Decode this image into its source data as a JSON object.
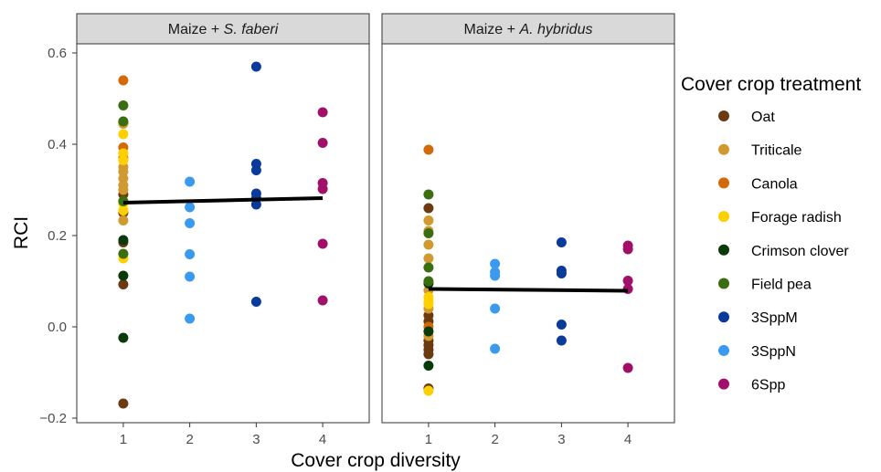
{
  "chart_data": {
    "type": "scatter",
    "xlabel": "Cover crop diversity",
    "ylabel": "RCI",
    "x_ticks": [
      "1",
      "2",
      "3",
      "4"
    ],
    "y_ticks": [
      "−0.2",
      "0.0",
      "0.2",
      "0.4",
      "0.6"
    ],
    "xlim": [
      0.3,
      4.7
    ],
    "ylim": [
      -0.21,
      0.62
    ],
    "grid": false,
    "legend": {
      "title": "Cover crop treatment",
      "position": "right",
      "entries": [
        {
          "name": "Oat",
          "color": "#6B3A10"
        },
        {
          "name": "Triticale",
          "color": "#D09A30"
        },
        {
          "name": "Canola",
          "color": "#D2690A"
        },
        {
          "name": "Forage radish",
          "color": "#FFD000"
        },
        {
          "name": "Crimson clover",
          "color": "#0A3A0A"
        },
        {
          "name": "Field pea",
          "color": "#3A6E10"
        },
        {
          "name": "3SppM",
          "color": "#0A3A9A"
        },
        {
          "name": "3SppN",
          "color": "#3A9AF0"
        },
        {
          "name": "6Spp",
          "color": "#A0106A"
        }
      ]
    },
    "panels": [
      {
        "title_prefix": "Maize + ",
        "title_species": "S. faberi",
        "trend": {
          "x": [
            1,
            4
          ],
          "y": [
            0.272,
            0.282
          ]
        },
        "series": [
          {
            "name": "Oat",
            "x": [
              1,
              1,
              1,
              1,
              1,
              1
            ],
            "y": [
              0.447,
              0.29,
              0.25,
              0.185,
              0.093,
              -0.168
            ]
          },
          {
            "name": "Triticale",
            "x": [
              1,
              1,
              1,
              1,
              1,
              1,
              1,
              1
            ],
            "y": [
              0.445,
              0.35,
              0.34,
              0.325,
              0.31,
              0.3,
              0.275,
              0.233
            ]
          },
          {
            "name": "Canola",
            "x": [
              1,
              1,
              1
            ],
            "y": [
              0.54,
              0.393,
              0.37
            ]
          },
          {
            "name": "Forage radish",
            "x": [
              1,
              1,
              1,
              1,
              1,
              1
            ],
            "y": [
              0.422,
              0.38,
              0.365,
              0.27,
              0.255,
              0.15
            ]
          },
          {
            "name": "Crimson clover",
            "x": [
              1,
              1,
              1
            ],
            "y": [
              0.19,
              0.112,
              -0.024
            ]
          },
          {
            "name": "Field pea",
            "x": [
              1,
              1,
              1,
              1
            ],
            "y": [
              0.485,
              0.45,
              0.275,
              0.16
            ]
          },
          {
            "name": "3SppM",
            "x": [
              3,
              3,
              3,
              3,
              3,
              3,
              3
            ],
            "y": [
              0.57,
              0.357,
              0.343,
              0.292,
              0.282,
              0.268,
              0.055
            ]
          },
          {
            "name": "3SppN",
            "x": [
              2,
              2,
              2,
              2,
              2,
              2
            ],
            "y": [
              0.318,
              0.262,
              0.227,
              0.159,
              0.11,
              0.018
            ]
          },
          {
            "name": "6Spp",
            "x": [
              4,
              4,
              4,
              4,
              4,
              4
            ],
            "y": [
              0.47,
              0.403,
              0.315,
              0.302,
              0.182,
              0.058
            ]
          }
        ]
      },
      {
        "title_prefix": "Maize + ",
        "title_species": "A. hybridus",
        "trend": {
          "x": [
            1,
            4
          ],
          "y": [
            0.083,
            0.079
          ]
        },
        "series": [
          {
            "name": "Oat",
            "x": [
              1,
              1,
              1,
              1,
              1,
              1,
              1,
              1
            ],
            "y": [
              0.26,
              0.025,
              0.012,
              -0.03,
              -0.04,
              -0.05,
              -0.06,
              -0.135
            ]
          },
          {
            "name": "Triticale",
            "x": [
              1,
              1,
              1,
              1,
              1,
              1,
              1
            ],
            "y": [
              0.233,
              0.21,
              0.18,
              0.15,
              0.08,
              0.04,
              -0.02
            ]
          },
          {
            "name": "Canola",
            "x": [
              1,
              1
            ],
            "y": [
              0.388,
              0.0
            ]
          },
          {
            "name": "Forage radish",
            "x": [
              1,
              1,
              1,
              1
            ],
            "y": [
              0.065,
              0.055,
              0.05,
              -0.14
            ]
          },
          {
            "name": "Crimson clover",
            "x": [
              1,
              1,
              1
            ],
            "y": [
              0.095,
              -0.01,
              -0.085
            ]
          },
          {
            "name": "Field pea",
            "x": [
              1,
              1,
              1,
              1
            ],
            "y": [
              0.29,
              0.205,
              0.13,
              0.1
            ]
          },
          {
            "name": "3SppM",
            "x": [
              3,
              3,
              3,
              3,
              3
            ],
            "y": [
              0.185,
              0.123,
              0.117,
              0.005,
              -0.03
            ]
          },
          {
            "name": "3SppN",
            "x": [
              2,
              2,
              2,
              2,
              2
            ],
            "y": [
              0.138,
              0.12,
              0.112,
              0.04,
              -0.048
            ]
          },
          {
            "name": "6Spp",
            "x": [
              4,
              4,
              4,
              4,
              4
            ],
            "y": [
              0.178,
              0.17,
              0.101,
              0.083,
              -0.09
            ]
          }
        ]
      }
    ]
  }
}
